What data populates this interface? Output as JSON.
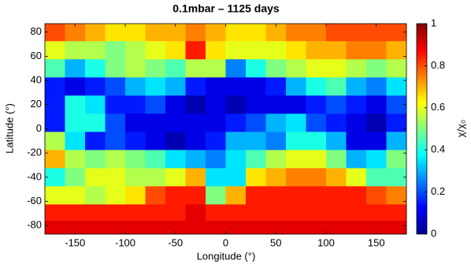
{
  "chart_data": {
    "type": "heatmap",
    "title": "0.1mbar – 1125 days",
    "x_label": "Longitude (°)",
    "y_label": "Latitude (°)",
    "colorbar_label": "χ/χ₀",
    "xlim": [
      -180,
      180
    ],
    "xticks": [
      -150,
      -100,
      -50,
      0,
      50,
      100,
      150
    ],
    "ylim": [
      -87,
      87
    ],
    "yticks": [
      -80,
      -60,
      -40,
      -20,
      0,
      20,
      40,
      60,
      80
    ],
    "clim": [
      0,
      1
    ],
    "cticks": [
      0,
      0.2,
      0.4,
      0.6,
      0.8,
      1
    ],
    "colormap": "jet",
    "x": [
      -170,
      -150,
      -130,
      -110,
      -90,
      -70,
      -50,
      -30,
      -10,
      10,
      30,
      50,
      70,
      90,
      110,
      130,
      150,
      170
    ],
    "y": [
      80,
      65,
      50,
      35,
      20,
      5,
      -10,
      -25,
      -40,
      -55,
      -70,
      -82
    ],
    "z": [
      [
        0.8,
        0.75,
        0.7,
        0.65,
        0.65,
        0.7,
        0.7,
        0.75,
        0.7,
        0.65,
        0.65,
        0.7,
        0.75,
        0.75,
        0.8,
        0.8,
        0.8,
        0.8
      ],
      [
        0.6,
        0.55,
        0.55,
        0.5,
        0.55,
        0.6,
        0.65,
        0.85,
        0.65,
        0.6,
        0.6,
        0.6,
        0.65,
        0.7,
        0.7,
        0.75,
        0.75,
        0.7
      ],
      [
        0.45,
        0.3,
        0.4,
        0.5,
        0.55,
        0.5,
        0.45,
        0.55,
        0.55,
        0.25,
        0.4,
        0.5,
        0.55,
        0.6,
        0.6,
        0.55,
        0.5,
        0.55
      ],
      [
        0.15,
        0.1,
        0.15,
        0.2,
        0.3,
        0.35,
        0.3,
        0.15,
        0.1,
        0.1,
        0.1,
        0.15,
        0.3,
        0.4,
        0.45,
        0.3,
        0.25,
        0.35
      ],
      [
        0.15,
        0.4,
        0.35,
        0.15,
        0.15,
        0.2,
        0.1,
        0.05,
        0.1,
        0.05,
        0.1,
        0.1,
        0.1,
        0.15,
        0.2,
        0.15,
        0.1,
        0.2
      ],
      [
        0.15,
        0.4,
        0.4,
        0.2,
        0.1,
        0.1,
        0.1,
        0.1,
        0.1,
        0.15,
        0.2,
        0.3,
        0.35,
        0.2,
        0.15,
        0.1,
        0.05,
        0.15
      ],
      [
        0.55,
        0.35,
        0.15,
        0.2,
        0.15,
        0.1,
        0.05,
        0.1,
        0.15,
        0.3,
        0.3,
        0.25,
        0.4,
        0.4,
        0.3,
        0.1,
        0.1,
        0.3
      ],
      [
        0.7,
        0.55,
        0.5,
        0.55,
        0.5,
        0.45,
        0.35,
        0.3,
        0.25,
        0.35,
        0.45,
        0.55,
        0.6,
        0.6,
        0.5,
        0.3,
        0.35,
        0.5
      ],
      [
        0.4,
        0.5,
        0.6,
        0.6,
        0.55,
        0.55,
        0.6,
        0.7,
        0.35,
        0.35,
        0.65,
        0.7,
        0.75,
        0.75,
        0.7,
        0.6,
        0.45,
        0.45
      ],
      [
        0.6,
        0.6,
        0.55,
        0.6,
        0.65,
        0.8,
        0.85,
        0.85,
        0.5,
        0.7,
        0.85,
        0.85,
        0.85,
        0.85,
        0.85,
        0.85,
        0.8,
        0.75
      ],
      [
        0.85,
        0.85,
        0.85,
        0.85,
        0.85,
        0.85,
        0.85,
        0.9,
        0.85,
        0.85,
        0.85,
        0.85,
        0.85,
        0.85,
        0.85,
        0.85,
        0.85,
        0.85
      ],
      [
        0.9,
        0.9,
        0.9,
        0.9,
        0.9,
        0.9,
        0.9,
        0.9,
        0.9,
        0.9,
        0.9,
        0.9,
        0.9,
        0.9,
        0.9,
        0.9,
        0.9,
        0.9
      ]
    ]
  }
}
